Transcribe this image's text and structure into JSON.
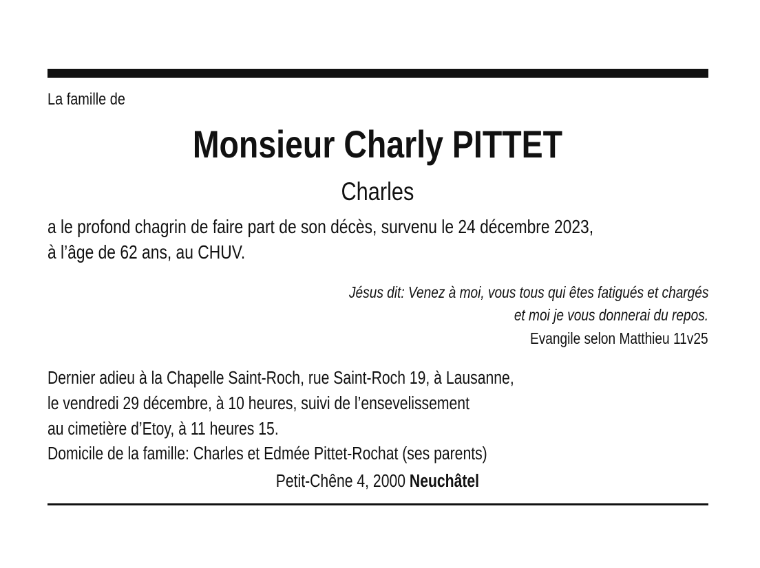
{
  "notice": {
    "intro": "La famille de",
    "name": "Monsieur Charly PITTET",
    "alias": "Charles",
    "announcement": [
      "a le profond chagrin de faire part de son décès, survenu le 24 décembre 2023,",
      "à l’âge de 62 ans, au CHUV."
    ],
    "quote": [
      "Jésus dit: Venez à moi, vous tous qui êtes fatigués et chargés",
      "et moi je vous donnerai du repos."
    ],
    "quote_source": "Evangile selon Matthieu 11v25",
    "ceremony": [
      "Dernier adieu à la Chapelle Saint-Roch, rue Saint-Roch 19, à Lausanne,",
      "le vendredi 29 décembre, à 10 heures, suivi de l’ensevelissement",
      "au cimetière d’Etoy, à 11 heures 15.",
      "Domicile de la famille: Charles et Edmée Pittet-Rochat (ses parents)"
    ],
    "address_street": "Petit-Chêne 4, 2000 ",
    "address_city": "Neuchâtel"
  }
}
